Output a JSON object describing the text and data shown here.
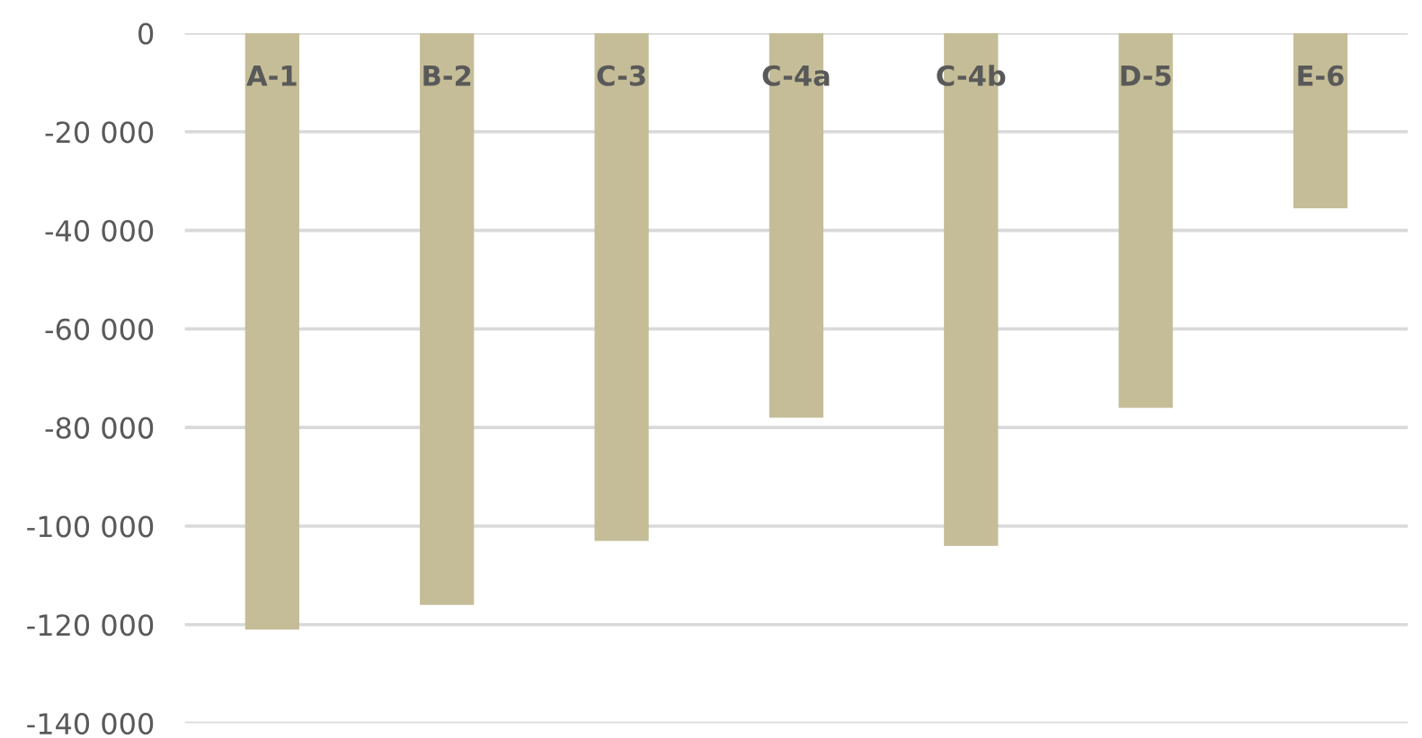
{
  "chart_data": {
    "type": "bar",
    "categories": [
      "A-1",
      "B-2",
      "C-3",
      "C-4a",
      "C-4b",
      "D-5",
      "E-6"
    ],
    "values": [
      -121000,
      -116000,
      -103000,
      -78000,
      -104000,
      -76000,
      -35500
    ],
    "color": "#c4bd97",
    "ylim": [
      -140000,
      0
    ],
    "yticks": [
      {
        "value": 0,
        "label": "0"
      },
      {
        "value": -20000,
        "label": "-20 000"
      },
      {
        "value": -40000,
        "label": "-40 000"
      },
      {
        "value": -60000,
        "label": "-60 000"
      },
      {
        "value": -80000,
        "label": "-80 000"
      },
      {
        "value": -100000,
        "label": "-100 000"
      },
      {
        "value": -120000,
        "label": "-120 000"
      },
      {
        "value": -140000,
        "label": "-140 000"
      }
    ],
    "grid": "y",
    "legend": false
  }
}
